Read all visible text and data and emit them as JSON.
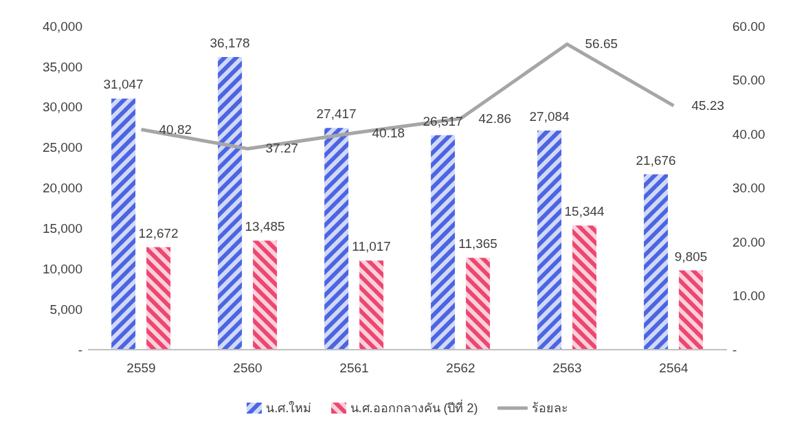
{
  "chart_data": {
    "type": "bar",
    "categories": [
      "2559",
      "2560",
      "2561",
      "2562",
      "2563",
      "2564"
    ],
    "series": [
      {
        "name": "น.ศ.ใหม่",
        "color": "#8f9fec",
        "values": [
          31047,
          36178,
          27417,
          26517,
          27084,
          21676
        ],
        "value_labels": [
          "31,047",
          "36,178",
          "27,417",
          "26,517",
          "27,084",
          "21,676"
        ]
      },
      {
        "name": "น.ศ.ออกกลางคัน (ปีที่ 2)",
        "color": "#f48ca6",
        "values": [
          12672,
          13485,
          11017,
          11365,
          15344,
          9805
        ],
        "value_labels": [
          "12,672",
          "13,485",
          "11,017",
          "11,365",
          "15,344",
          "9,805"
        ]
      },
      {
        "name": "ร้อยละ",
        "type": "line",
        "axis": "y2",
        "color": "#a6a6a6",
        "values": [
          40.82,
          37.27,
          40.18,
          42.86,
          56.65,
          45.23
        ],
        "value_labels": [
          "40.82",
          "37.27",
          "40.18",
          "42.86",
          "56.65",
          "45.23"
        ]
      }
    ],
    "ylim": [
      0,
      40000
    ],
    "yticks": [
      {
        "value": 0,
        "label": "-"
      },
      {
        "value": 5000,
        "label": "5,000"
      },
      {
        "value": 10000,
        "label": "10,000"
      },
      {
        "value": 15000,
        "label": "15,000"
      },
      {
        "value": 20000,
        "label": "20,000"
      },
      {
        "value": 25000,
        "label": "25,000"
      },
      {
        "value": 30000,
        "label": "30,000"
      },
      {
        "value": 35000,
        "label": "35,000"
      },
      {
        "value": 40000,
        "label": "40,000"
      }
    ],
    "y2lim": [
      0,
      60
    ],
    "y2ticks": [
      {
        "value": 0,
        "label": "-"
      },
      {
        "value": 10,
        "label": "10.00"
      },
      {
        "value": 20,
        "label": "20.00"
      },
      {
        "value": 30,
        "label": "30.00"
      },
      {
        "value": 40,
        "label": "40.00"
      },
      {
        "value": 50,
        "label": "50.00"
      },
      {
        "value": 60,
        "label": "60.00"
      }
    ],
    "grid": false,
    "legend": "bottom",
    "marker": "none"
  }
}
